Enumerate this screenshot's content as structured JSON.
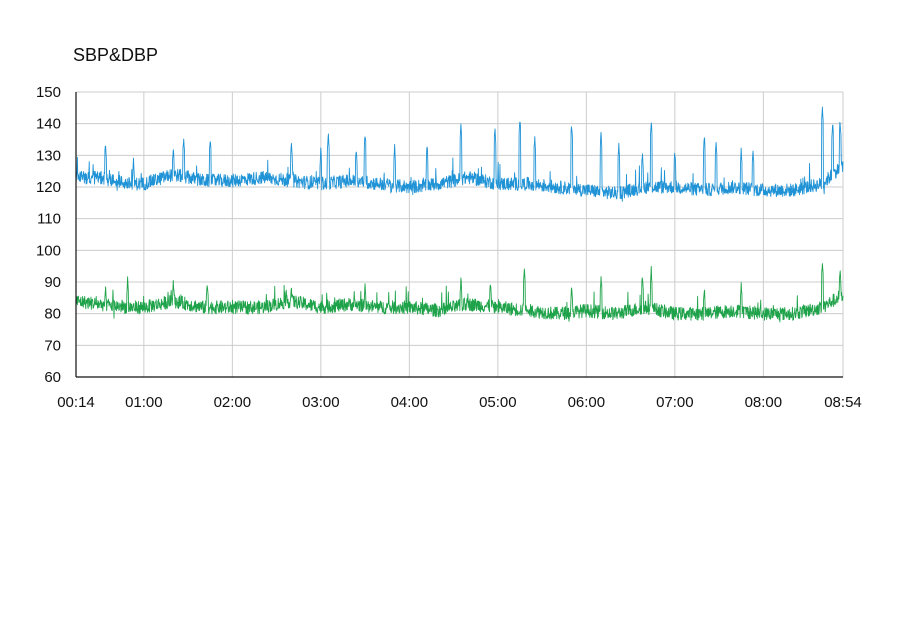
{
  "chart_data": {
    "type": "line",
    "title": "SBP&DBP",
    "xlabel": "",
    "ylabel": "",
    "ylim": [
      60,
      150
    ],
    "yticks": [
      60,
      70,
      80,
      90,
      100,
      110,
      120,
      130,
      140,
      150
    ],
    "xlim": [
      "00:14",
      "08:54"
    ],
    "xticks": [
      "00:14",
      "01:00",
      "02:00",
      "03:00",
      "04:00",
      "05:00",
      "06:00",
      "07:00",
      "08:00",
      "08:54"
    ],
    "grid": true,
    "colors": {
      "sbp": "#1f93d6",
      "dbp": "#1fa34a",
      "grid": "#cccccc",
      "axis": "#111111"
    },
    "series": [
      {
        "color_key": "sbp",
        "base_profile": [
          [
            "00:14",
            123
          ],
          [
            "00:30",
            123
          ],
          [
            "00:50",
            121
          ],
          [
            "01:00",
            121
          ],
          [
            "01:20",
            124
          ],
          [
            "01:40",
            122
          ],
          [
            "02:00",
            122
          ],
          [
            "02:20",
            123
          ],
          [
            "02:40",
            122
          ],
          [
            "03:00",
            121
          ],
          [
            "03:20",
            122
          ],
          [
            "03:40",
            121
          ],
          [
            "04:00",
            120
          ],
          [
            "04:20",
            121
          ],
          [
            "04:40",
            123
          ],
          [
            "05:00",
            121
          ],
          [
            "05:20",
            121
          ],
          [
            "05:40",
            120
          ],
          [
            "06:00",
            119
          ],
          [
            "06:20",
            118
          ],
          [
            "06:40",
            120
          ],
          [
            "07:00",
            120
          ],
          [
            "07:20",
            119
          ],
          [
            "07:40",
            120
          ],
          [
            "08:00",
            119
          ],
          [
            "08:20",
            119
          ],
          [
            "08:40",
            121
          ],
          [
            "08:54",
            127
          ]
        ],
        "spikes": [
          [
            "00:34",
            135
          ],
          [
            "00:53",
            130
          ],
          [
            "01:20",
            133
          ],
          [
            "01:27",
            137
          ],
          [
            "01:45",
            136
          ],
          [
            "02:40",
            135
          ],
          [
            "03:00",
            133
          ],
          [
            "03:05",
            138
          ],
          [
            "03:24",
            133
          ],
          [
            "03:30",
            138
          ],
          [
            "03:50",
            134
          ],
          [
            "04:12",
            134
          ],
          [
            "04:35",
            141
          ],
          [
            "04:58",
            140
          ],
          [
            "05:15",
            142
          ],
          [
            "05:25",
            137
          ],
          [
            "05:50",
            141
          ],
          [
            "06:10",
            138
          ],
          [
            "06:22",
            135
          ],
          [
            "06:38",
            132
          ],
          [
            "06:44",
            142
          ],
          [
            "07:00",
            132
          ],
          [
            "07:20",
            137
          ],
          [
            "07:28",
            135
          ],
          [
            "07:45",
            133
          ],
          [
            "07:53",
            133
          ],
          [
            "08:40",
            146
          ],
          [
            "08:47",
            141
          ],
          [
            "08:52",
            142
          ]
        ],
        "low": 112,
        "high": 146
      },
      {
        "color_key": "dbp",
        "base_profile": [
          [
            "00:14",
            84
          ],
          [
            "00:30",
            83
          ],
          [
            "00:50",
            82
          ],
          [
            "01:00",
            82
          ],
          [
            "01:20",
            84
          ],
          [
            "01:40",
            82
          ],
          [
            "02:00",
            82
          ],
          [
            "02:20",
            82
          ],
          [
            "02:40",
            84
          ],
          [
            "03:00",
            82
          ],
          [
            "03:20",
            83
          ],
          [
            "03:40",
            82
          ],
          [
            "04:00",
            82
          ],
          [
            "04:20",
            81
          ],
          [
            "04:40",
            83
          ],
          [
            "05:00",
            82
          ],
          [
            "05:20",
            81
          ],
          [
            "05:40",
            80
          ],
          [
            "06:00",
            81
          ],
          [
            "06:20",
            80
          ],
          [
            "06:40",
            82
          ],
          [
            "07:00",
            80
          ],
          [
            "07:20",
            80
          ],
          [
            "07:40",
            81
          ],
          [
            "08:00",
            80
          ],
          [
            "08:20",
            80
          ],
          [
            "08:40",
            82
          ],
          [
            "08:54",
            86
          ]
        ],
        "spikes": [
          [
            "00:34",
            90
          ],
          [
            "00:49",
            92
          ],
          [
            "01:20",
            91
          ],
          [
            "01:43",
            91
          ],
          [
            "02:40",
            89
          ],
          [
            "03:30",
            90
          ],
          [
            "04:35",
            92
          ],
          [
            "04:55",
            91
          ],
          [
            "05:18",
            95
          ],
          [
            "05:50",
            90
          ],
          [
            "06:10",
            93
          ],
          [
            "06:38",
            93
          ],
          [
            "06:44",
            95
          ],
          [
            "07:20",
            89
          ],
          [
            "07:45",
            90
          ],
          [
            "08:40",
            97
          ],
          [
            "08:52",
            95
          ]
        ],
        "low": 76,
        "high": 97
      }
    ]
  }
}
